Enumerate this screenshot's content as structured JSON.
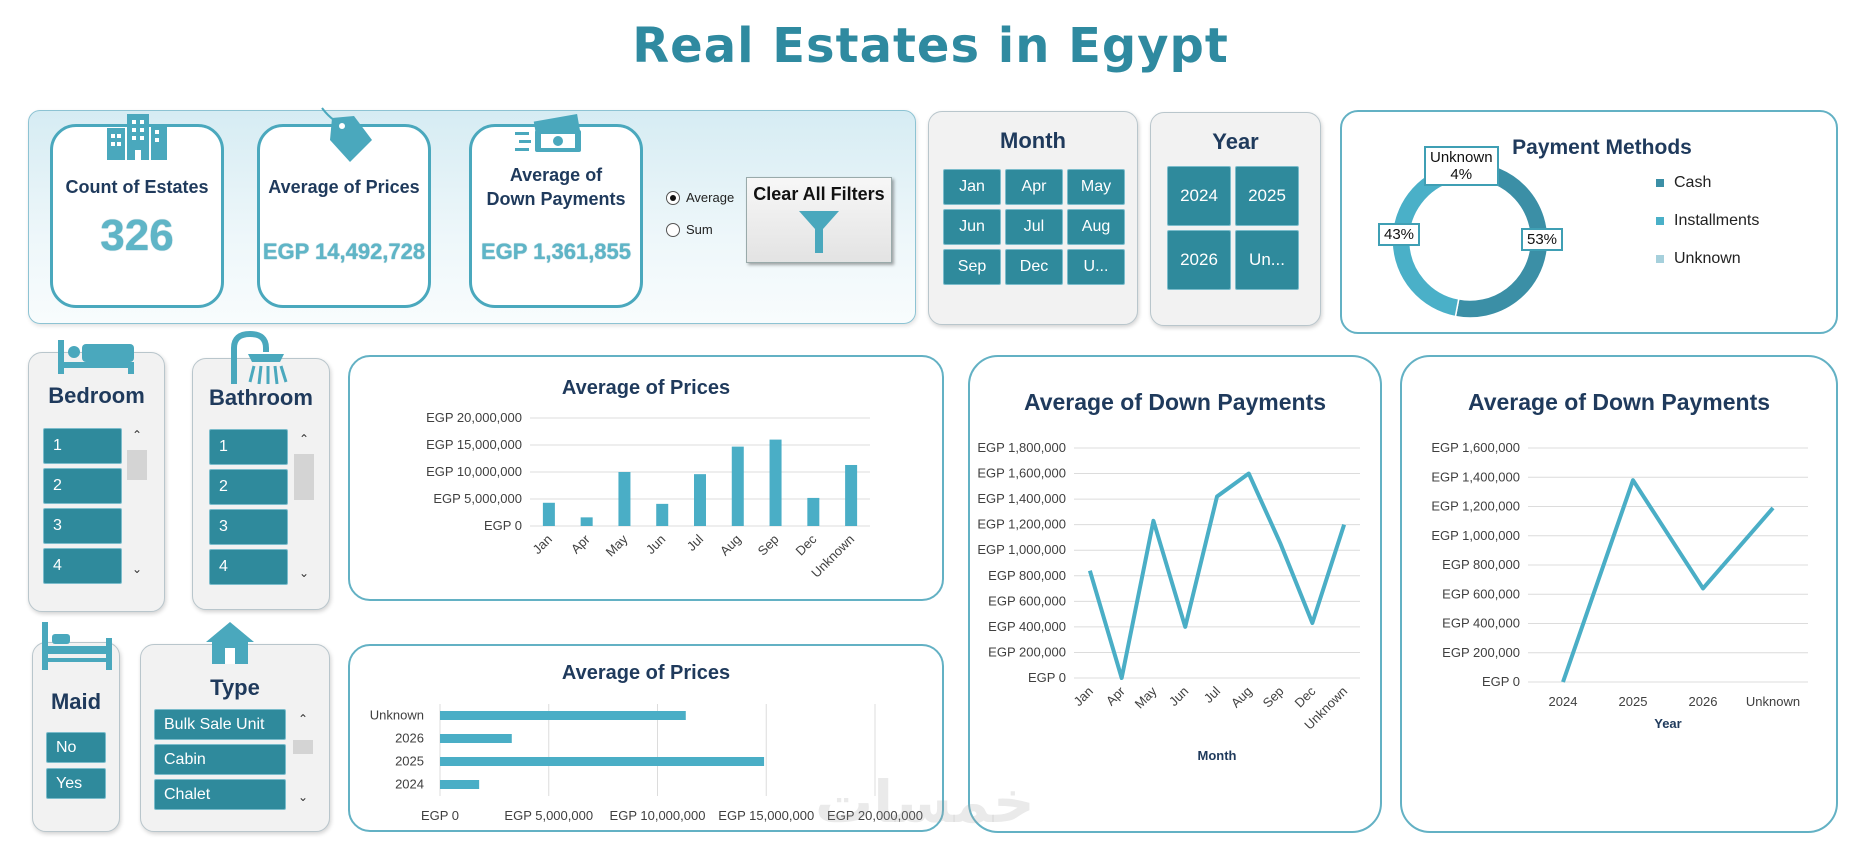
{
  "dashboard": {
    "title": "Real Estates in Egypt"
  },
  "kpis": [
    {
      "title": "Count of Estates",
      "value": "326"
    },
    {
      "title": "Average of Prices",
      "value": "EGP 14,492,728"
    },
    {
      "title": "Average of Down Payments",
      "value": "EGP 1,361,855"
    }
  ],
  "aggregation": {
    "options": [
      "Average",
      "Sum"
    ],
    "selected": "Average"
  },
  "clear_filters": {
    "label": "Clear All Filters"
  },
  "month_slicer": {
    "title": "Month",
    "items": [
      "Jan",
      "Apr",
      "May",
      "Jun",
      "Jul",
      "Aug",
      "Sep",
      "Dec",
      "U..."
    ]
  },
  "year_slicer": {
    "title": "Year",
    "items": [
      "2024",
      "2025",
      "2026",
      "Un..."
    ]
  },
  "bedroom_slicer": {
    "title": "Bedroom",
    "items": [
      "1",
      "2",
      "3",
      "4"
    ]
  },
  "bathroom_slicer": {
    "title": "Bathroom",
    "items": [
      "1",
      "2",
      "3",
      "4"
    ]
  },
  "maid_slicer": {
    "title": "Maid",
    "items": [
      "No",
      "Yes"
    ]
  },
  "type_slicer": {
    "title": "Type",
    "items": [
      "Bulk Sale Unit",
      "Cabin",
      "Chalet"
    ]
  },
  "watermark": "خمسات",
  "icons": {
    "count": "buildings-icon",
    "price": "price-tag-icon",
    "down": "cash-icon",
    "filter": "filter-funnel-icon",
    "bed": "bed-icon",
    "bath": "shower-icon",
    "maid": "single-bed-icon",
    "type": "house-icon"
  },
  "colors": {
    "accent": "#4aa8bd",
    "tile": "#2f8a9c",
    "title": "#2f8aa0",
    "dark_text": "#1f3a5c"
  },
  "chart_data": [
    {
      "id": "payment_methods",
      "type": "pie",
      "variant": "donut",
      "title": "Payment Methods",
      "slices": [
        {
          "label": "Cash",
          "value": 53,
          "display": "53%",
          "color": "#3b8fa6"
        },
        {
          "label": "Installments",
          "value": 43,
          "display": "43%",
          "color": "#4ab0c8"
        },
        {
          "label": "Unknown",
          "value": 4,
          "display": "4%",
          "color": "#a6d0dc"
        }
      ],
      "legend": "right"
    },
    {
      "id": "avg_prices_month",
      "type": "bar",
      "title": "Average of Prices",
      "categories": [
        "Jan",
        "Apr",
        "May",
        "Jun",
        "Jul",
        "Aug",
        "Sep",
        "Dec",
        "Unknown"
      ],
      "values": [
        4300000,
        1600000,
        10000000,
        4100000,
        9600000,
        14700000,
        16000000,
        5200000,
        11300000
      ],
      "yticks": [
        "EGP 0",
        "EGP 5,000,000",
        "EGP 10,000,000",
        "EGP 15,000,000",
        "EGP 20,000,000"
      ],
      "ylim": [
        0,
        20000000
      ],
      "grid": true
    },
    {
      "id": "avg_prices_year",
      "type": "bar",
      "orientation": "horizontal",
      "title": "Average of Prices",
      "categories": [
        "Unknown",
        "2026",
        "2025",
        "2024"
      ],
      "values": [
        11300000,
        3300000,
        14900000,
        1800000
      ],
      "xticks": [
        "EGP 0",
        "EGP 5,000,000",
        "EGP 10,000,000",
        "EGP 15,000,000",
        "EGP 20,000,000"
      ],
      "xlim": [
        0,
        20000000
      ],
      "grid": true
    },
    {
      "id": "avg_down_month",
      "type": "line",
      "title": "Average of Down Payments",
      "categories": [
        "Jan",
        "Apr",
        "May",
        "Jun",
        "Jul",
        "Aug",
        "Sep",
        "Dec",
        "Unknown"
      ],
      "values": [
        840000,
        0,
        1230000,
        400000,
        1420000,
        1600000,
        1050000,
        430000,
        1200000
      ],
      "yticks": [
        "EGP 0",
        "EGP 200,000",
        "EGP 400,000",
        "EGP 600,000",
        "EGP 800,000",
        "EGP 1,000,000",
        "EGP 1,200,000",
        "EGP 1,400,000",
        "EGP 1,600,000",
        "EGP 1,800,000"
      ],
      "ylim": [
        0,
        1800000
      ],
      "xlabel": "Month",
      "grid": true
    },
    {
      "id": "avg_down_year",
      "type": "line",
      "title": "Average of Down Payments",
      "categories": [
        "2024",
        "2025",
        "2026",
        "Unknown"
      ],
      "values": [
        0,
        1380000,
        640000,
        1190000
      ],
      "yticks": [
        "EGP 0",
        "EGP 200,000",
        "EGP 400,000",
        "EGP 600,000",
        "EGP 800,000",
        "EGP 1,000,000",
        "EGP 1,200,000",
        "EGP 1,400,000",
        "EGP 1,600,000"
      ],
      "ylim": [
        0,
        1600000
      ],
      "xlabel": "Year",
      "grid": true
    }
  ]
}
